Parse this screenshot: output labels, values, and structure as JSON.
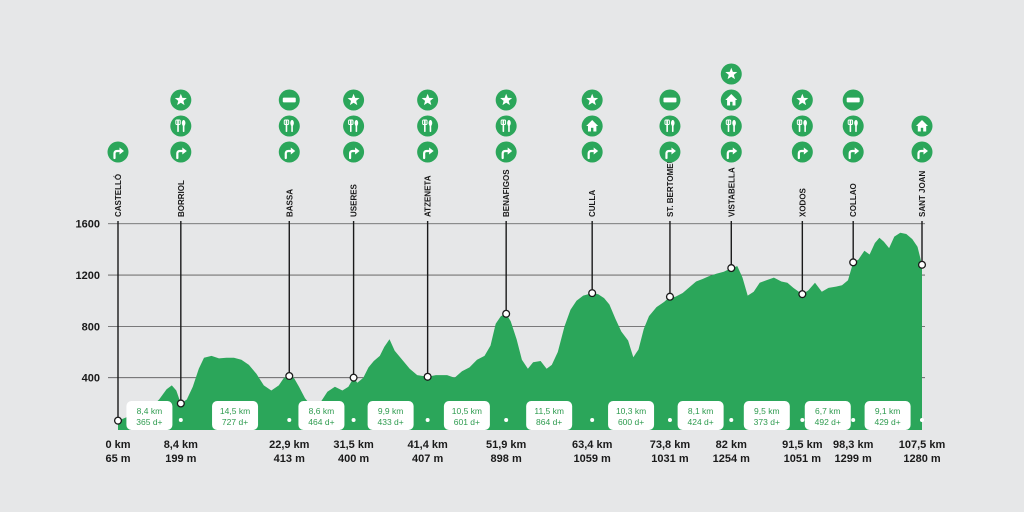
{
  "chart_data": {
    "type": "area",
    "title": "",
    "xlabel": "",
    "ylabel": "",
    "ylim": [
      0,
      1750
    ],
    "xlim": [
      0,
      107.5
    ],
    "yticks": [
      400,
      800,
      1200,
      1600
    ],
    "grid": true,
    "colors": {
      "fill": "#2ba65a",
      "icon": "#2ba65a",
      "grid": "#555555"
    },
    "profile": [
      [
        0,
        65
      ],
      [
        1.5,
        100
      ],
      [
        3,
        130
      ],
      [
        4.5,
        175
      ],
      [
        5.5,
        230
      ],
      [
        6.5,
        310
      ],
      [
        7.2,
        340
      ],
      [
        7.8,
        300
      ],
      [
        8.4,
        199
      ],
      [
        9.2,
        230
      ],
      [
        10,
        330
      ],
      [
        10.8,
        470
      ],
      [
        11.5,
        555
      ],
      [
        12.5,
        570
      ],
      [
        13.5,
        550
      ],
      [
        14.5,
        555
      ],
      [
        15.5,
        555
      ],
      [
        16.5,
        540
      ],
      [
        17.5,
        500
      ],
      [
        18.5,
        430
      ],
      [
        19.5,
        340
      ],
      [
        20.5,
        300
      ],
      [
        21.5,
        340
      ],
      [
        22.2,
        400
      ],
      [
        22.9,
        413
      ],
      [
        23.5,
        400
      ],
      [
        24.2,
        330
      ],
      [
        25,
        240
      ],
      [
        26,
        170
      ],
      [
        27,
        200
      ],
      [
        28,
        290
      ],
      [
        29,
        330
      ],
      [
        30,
        300
      ],
      [
        30.8,
        330
      ],
      [
        31.5,
        400
      ],
      [
        32,
        360
      ],
      [
        32.8,
        400
      ],
      [
        33.5,
        480
      ],
      [
        34.2,
        530
      ],
      [
        35,
        570
      ],
      [
        35.6,
        640
      ],
      [
        36.3,
        700
      ],
      [
        37,
        610
      ],
      [
        38,
        540
      ],
      [
        39,
        470
      ],
      [
        40,
        420
      ],
      [
        41.4,
        407
      ],
      [
        42.5,
        420
      ],
      [
        44,
        420
      ],
      [
        45,
        400
      ],
      [
        46,
        450
      ],
      [
        47,
        480
      ],
      [
        48,
        540
      ],
      [
        49,
        570
      ],
      [
        49.8,
        650
      ],
      [
        50.5,
        820
      ],
      [
        51.2,
        880
      ],
      [
        51.9,
        898
      ],
      [
        52.5,
        840
      ],
      [
        53.3,
        700
      ],
      [
        54,
        540
      ],
      [
        54.8,
        470
      ],
      [
        55.5,
        520
      ],
      [
        56.5,
        530
      ],
      [
        57.3,
        470
      ],
      [
        58,
        500
      ],
      [
        58.8,
        600
      ],
      [
        59.7,
        800
      ],
      [
        60.5,
        930
      ],
      [
        61.3,
        1000
      ],
      [
        62.2,
        1040
      ],
      [
        63.4,
        1059
      ],
      [
        64.2,
        1050
      ],
      [
        65,
        1020
      ],
      [
        65.7,
        970
      ],
      [
        66.5,
        860
      ],
      [
        67.3,
        760
      ],
      [
        68.2,
        690
      ],
      [
        68.9,
        560
      ],
      [
        69.6,
        620
      ],
      [
        70.3,
        780
      ],
      [
        71,
        880
      ],
      [
        72,
        950
      ],
      [
        73,
        990
      ],
      [
        73.8,
        1031
      ],
      [
        74.5,
        1030
      ],
      [
        75.5,
        1060
      ],
      [
        76.5,
        1110
      ],
      [
        77.3,
        1150
      ],
      [
        78.2,
        1170
      ],
      [
        79,
        1190
      ],
      [
        80,
        1210
      ],
      [
        81,
        1225
      ],
      [
        82,
        1254
      ],
      [
        82.8,
        1270
      ],
      [
        83.5,
        1180
      ],
      [
        84.2,
        1040
      ],
      [
        85,
        1070
      ],
      [
        85.8,
        1140
      ],
      [
        86.7,
        1160
      ],
      [
        87.7,
        1180
      ],
      [
        88.7,
        1150
      ],
      [
        89.5,
        1140
      ],
      [
        90.3,
        1100
      ],
      [
        91.5,
        1051
      ],
      [
        92.3,
        1080
      ],
      [
        93.2,
        1140
      ],
      [
        94.1,
        1070
      ],
      [
        95,
        1100
      ],
      [
        96,
        1110
      ],
      [
        96.8,
        1120
      ],
      [
        97.6,
        1160
      ],
      [
        98.3,
        1299
      ],
      [
        99,
        1320
      ],
      [
        99.8,
        1390
      ],
      [
        100.5,
        1360
      ],
      [
        101.2,
        1450
      ],
      [
        101.8,
        1490
      ],
      [
        102.4,
        1460
      ],
      [
        103.1,
        1410
      ],
      [
        103.8,
        1500
      ],
      [
        104.6,
        1530
      ],
      [
        105.4,
        1520
      ],
      [
        106.2,
        1480
      ],
      [
        106.9,
        1420
      ],
      [
        107.5,
        1280
      ]
    ],
    "points": [
      {
        "name": "CASTELLÓ",
        "km": "0 km",
        "alt": "65 m",
        "x": 0,
        "y": 65,
        "icons": [
          "route"
        ]
      },
      {
        "name": "BORRIOL",
        "km": "8,4 km",
        "alt": "199 m",
        "x": 8.4,
        "y": 199,
        "icons": [
          "star",
          "food",
          "route"
        ]
      },
      {
        "name": "BASSA",
        "km": "22,9 km",
        "alt": "413 m",
        "x": 22.9,
        "y": 413,
        "icons": [
          "bar",
          "food",
          "route"
        ]
      },
      {
        "name": "USERES",
        "km": "31,5 km",
        "alt": "400 m",
        "x": 31.5,
        "y": 400,
        "icons": [
          "star",
          "food",
          "route"
        ]
      },
      {
        "name": "ATZENETA",
        "km": "41,4 km",
        "alt": "407 m",
        "x": 41.4,
        "y": 407,
        "icons": [
          "star",
          "food",
          "route"
        ]
      },
      {
        "name": "BENAFIGOS",
        "km": "51,9 km",
        "alt": "898 m",
        "x": 51.9,
        "y": 898,
        "icons": [
          "star",
          "food",
          "route"
        ]
      },
      {
        "name": "CULLA",
        "km": "63,4 km",
        "alt": "1059 m",
        "x": 63.4,
        "y": 1059,
        "icons": [
          "star",
          "house",
          "route"
        ]
      },
      {
        "name": "ST. BERTOMEU",
        "km": "73,8 km",
        "alt": "1031 m",
        "x": 73.8,
        "y": 1031,
        "icons": [
          "bar",
          "food",
          "route"
        ]
      },
      {
        "name": "VISTABELLA",
        "km": "82 km",
        "alt": "1254 m",
        "x": 82,
        "y": 1254,
        "icons": [
          "star",
          "house",
          "food",
          "route"
        ]
      },
      {
        "name": "XODOS",
        "km": "91,5 km",
        "alt": "1051 m",
        "x": 91.5,
        "y": 1051,
        "icons": [
          "star",
          "food",
          "route"
        ]
      },
      {
        "name": "COLLAO",
        "km": "98,3 km",
        "alt": "1299 m",
        "x": 98.3,
        "y": 1299,
        "icons": [
          "bar",
          "food",
          "route"
        ]
      },
      {
        "name": "SANT JOAN",
        "km": "107,5 km",
        "alt": "1280 m",
        "x": 107.5,
        "y": 1280,
        "icons": [
          "house",
          "route"
        ]
      }
    ],
    "segments": [
      {
        "dist": "8,4 km",
        "gain": "365 d+"
      },
      {
        "dist": "14,5 km",
        "gain": "727 d+"
      },
      {
        "dist": "8,6 km",
        "gain": "464 d+"
      },
      {
        "dist": "9,9 km",
        "gain": "433 d+"
      },
      {
        "dist": "10,5 km",
        "gain": "601 d+"
      },
      {
        "dist": "11,5 km",
        "gain": "864 d+"
      },
      {
        "dist": "10,3 km",
        "gain": "600 d+"
      },
      {
        "dist": "8,1 km",
        "gain": "424 d+"
      },
      {
        "dist": "9,5 km",
        "gain": "373 d+"
      },
      {
        "dist": "6,7 km",
        "gain": "492 d+"
      },
      {
        "dist": "9,1 km",
        "gain": "429 d+"
      }
    ]
  }
}
